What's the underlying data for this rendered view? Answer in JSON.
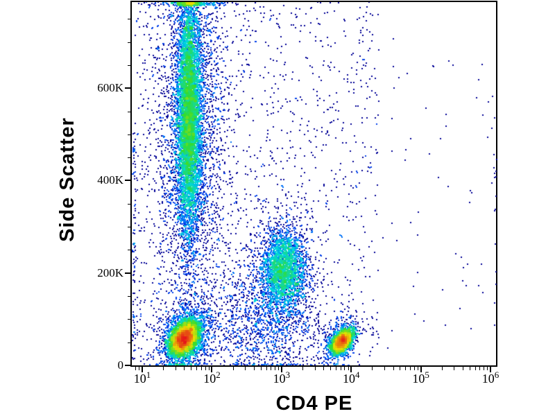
{
  "figure": {
    "background_color": "#ffffff",
    "frame_color": "#000000",
    "tick_color": "#000000",
    "text_color": "#000000"
  },
  "chart_data": {
    "type": "scatter",
    "subtype": "flow-cytometry-pseudocolor-density",
    "title": "",
    "xlabel": "CD4 PE",
    "ylabel": "Side Scatter",
    "x_scale": "log10",
    "xlim_log10": [
      0.85,
      6.1
    ],
    "ylim": [
      0,
      786432
    ],
    "grid": "off",
    "legend": "none",
    "x_tick_base": "10",
    "x_ticks": [
      {
        "exponent": "1",
        "log10": 1
      },
      {
        "exponent": "2",
        "log10": 2
      },
      {
        "exponent": "3",
        "log10": 3
      },
      {
        "exponent": "4",
        "log10": 4
      },
      {
        "exponent": "5",
        "log10": 5
      },
      {
        "exponent": "6",
        "log10": 6
      }
    ],
    "x_minor_mantissas": [
      2,
      3,
      4,
      5,
      6,
      7,
      8,
      9
    ],
    "y_ticks": [
      {
        "label": "0",
        "value": 0
      },
      {
        "label": "200K",
        "value": 200000
      },
      {
        "label": "400K",
        "value": 400000
      },
      {
        "label": "600K",
        "value": 600000
      }
    ],
    "y_minor_tick_step": 50000,
    "colormap": "jet-pseudocolor",
    "colormap_stops": [
      "#000096",
      "#0050ff",
      "#00d7e0",
      "#32dc32",
      "#ebe100",
      "#e61919"
    ],
    "populations": [
      {
        "name": "granulocytes-core",
        "dist": "gaussian",
        "n": 6500,
        "mean_log10x": 1.67,
        "sigma_log10x": 0.085,
        "mean_y": 545000,
        "sigma_y": 135000,
        "rho": 0
      },
      {
        "name": "granulocytes-halo",
        "dist": "gaussian",
        "n": 2600,
        "mean_log10x": 1.7,
        "sigma_log10x": 0.24,
        "mean_y": 520000,
        "sigma_y": 185000,
        "rho": 0
      },
      {
        "name": "lymphocytes-cd4neg-core",
        "dist": "gaussian",
        "n": 5600,
        "mean_log10x": 1.6,
        "sigma_log10x": 0.1,
        "mean_y": 58000,
        "sigma_y": 18000,
        "rho": 0.35
      },
      {
        "name": "lymphocytes-cd4neg-halo",
        "dist": "gaussian",
        "n": 1400,
        "mean_log10x": 1.62,
        "sigma_log10x": 0.19,
        "mean_y": 60000,
        "sigma_y": 36000,
        "rho": 0.2
      },
      {
        "name": "monocytes-core",
        "dist": "gaussian",
        "n": 2300,
        "mean_log10x": 3.03,
        "sigma_log10x": 0.15,
        "mean_y": 208000,
        "sigma_y": 42000,
        "rho": 0
      },
      {
        "name": "monocytes-halo",
        "dist": "gaussian",
        "n": 900,
        "mean_log10x": 3.0,
        "sigma_log10x": 0.27,
        "mean_y": 195000,
        "sigma_y": 75000,
        "rho": 0
      },
      {
        "name": "cd4pos-t-cells-core",
        "dist": "gaussian",
        "n": 2600,
        "mean_log10x": 3.87,
        "sigma_log10x": 0.075,
        "mean_y": 52000,
        "sigma_y": 13000,
        "rho": 0.5
      },
      {
        "name": "cd4pos-t-cells-halo",
        "dist": "gaussian",
        "n": 500,
        "mean_log10x": 3.85,
        "sigma_log10x": 0.14,
        "mean_y": 55000,
        "sigma_y": 26000,
        "rho": 0.3
      },
      {
        "name": "debris-bridge",
        "dist": "gaussian",
        "n": 1000,
        "mean_log10x": 2.75,
        "sigma_log10x": 0.45,
        "mean_y": 90000,
        "sigma_y": 55000,
        "rho": 0
      },
      {
        "name": "background-scatter-near",
        "dist": "uniform",
        "n": 900,
        "log10x_range": [
          0.9,
          2.6
        ],
        "y_range": [
          0,
          786432
        ]
      },
      {
        "name": "background-scatter-mid",
        "dist": "uniform",
        "n": 650,
        "log10x_range": [
          2.6,
          4.4
        ],
        "y_range": [
          0,
          786432
        ]
      },
      {
        "name": "background-scatter-right",
        "dist": "uniform",
        "n": 60,
        "log10x_range": [
          4.4,
          6.08
        ],
        "y_range": [
          0,
          720000
        ]
      },
      {
        "name": "left-edge-pileup",
        "dist": "uniform",
        "n": 90,
        "log10x_range": [
          0.86,
          0.9
        ],
        "y_range": [
          10000,
          530000
        ]
      },
      {
        "name": "right-edge-pileup",
        "dist": "uniform",
        "n": 14,
        "log10x_range": [
          6.05,
          6.09
        ],
        "y_range": [
          80000,
          470000
        ]
      }
    ]
  }
}
